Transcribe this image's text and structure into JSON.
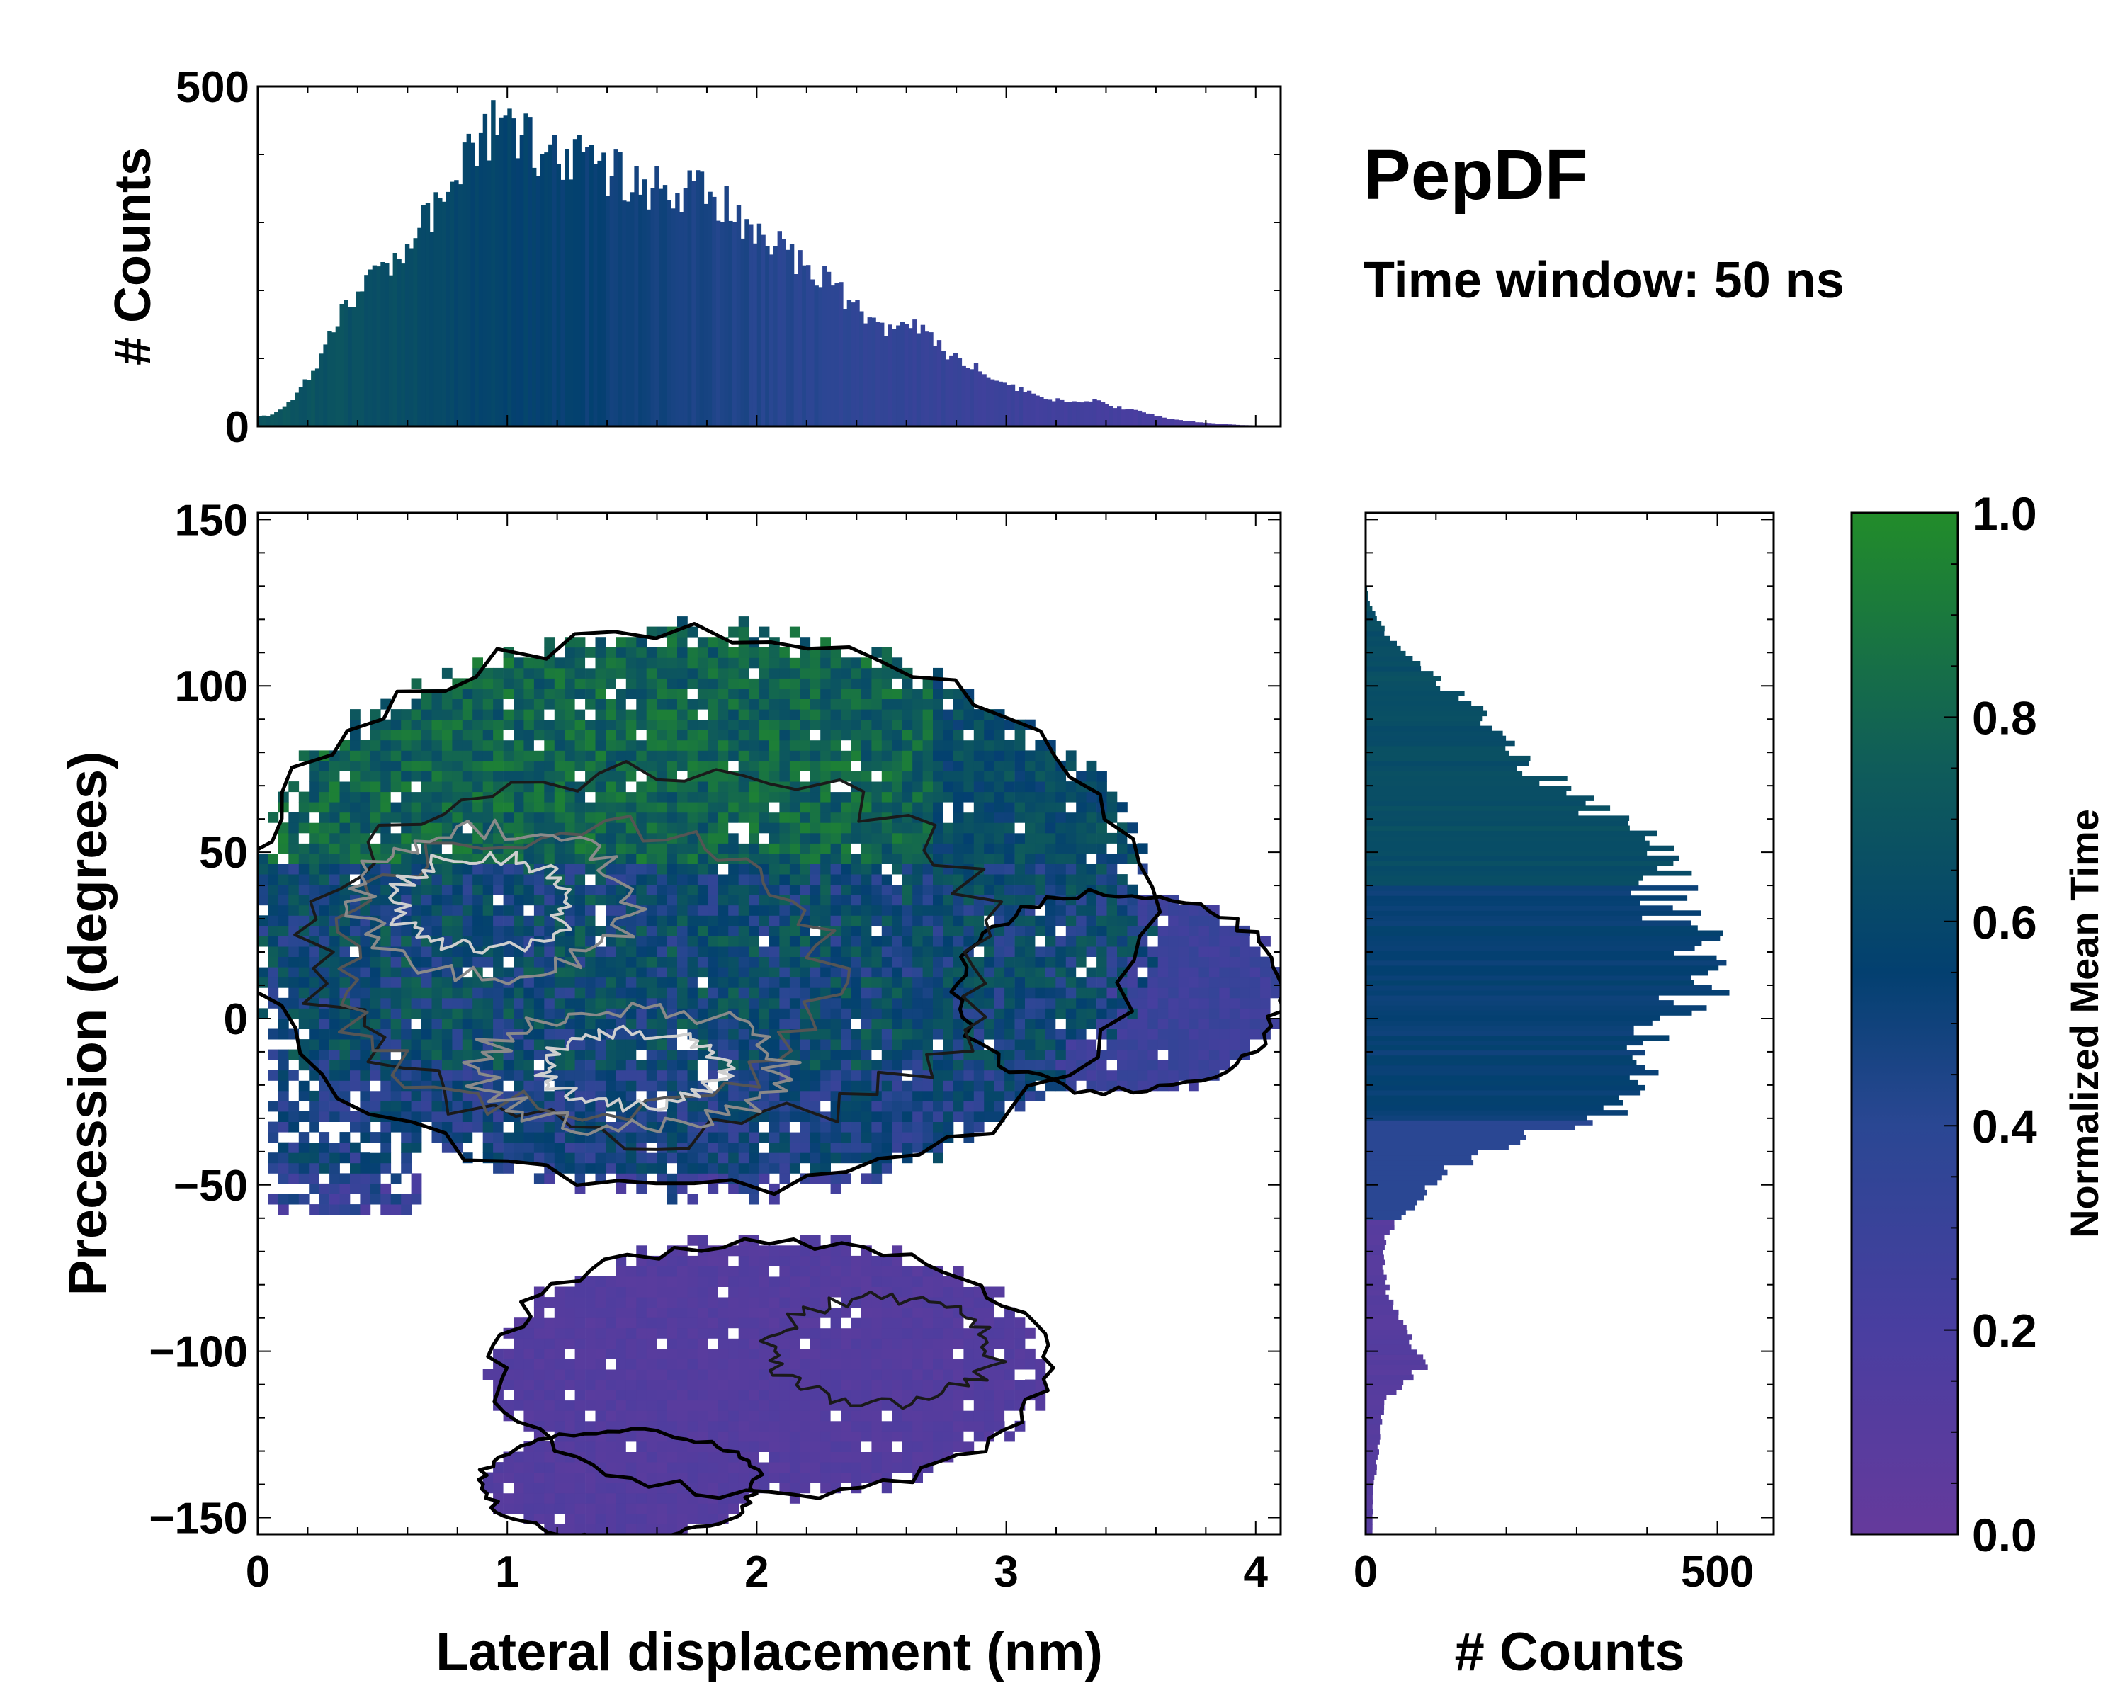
{
  "title": "PepDF",
  "subtitle": "Time window: 50 ns",
  "chart_data": [
    {
      "type": "heatmap",
      "name": "main-2d-histogram",
      "xlabel": "Lateral displacement (nm)",
      "ylabel": "Precession (degrees)",
      "xlim": [
        0,
        4.1
      ],
      "ylim": [
        -155,
        152
      ],
      "xticks": [
        "0",
        "1",
        "2",
        "3",
        "4"
      ],
      "xtick_values": [
        0,
        1,
        2,
        3,
        4
      ],
      "yticks": [
        "−150",
        "−100",
        "−50",
        "0",
        "50",
        "100",
        "150"
      ],
      "ytick_values": [
        -150,
        -100,
        -50,
        0,
        50,
        100,
        150
      ],
      "overlay": "density contours (white = highest density, grey, black = outer)",
      "density_modes": [
        {
          "x": 0.9,
          "y": 35,
          "label": "high"
        },
        {
          "x": 1.5,
          "y": -15,
          "label": "high"
        },
        {
          "x": 2.5,
          "y": -100,
          "label": "medium"
        }
      ],
      "regions": [
        {
          "name": "upper-main",
          "x_range": [
            0,
            3.6
          ],
          "y_range": [
            -65,
            120
          ],
          "normalized_mean_time": "0.3-0.9"
        },
        {
          "name": "right-lobe",
          "x_range": [
            2.9,
            4.05
          ],
          "y_range": [
            -30,
            40
          ],
          "normalized_mean_time": "0.2-0.3"
        },
        {
          "name": "lower-lobe",
          "x_range": [
            0.8,
            3.3
          ],
          "y_range": [
            -155,
            -65
          ],
          "normalized_mean_time": "0.05-0.15"
        }
      ]
    },
    {
      "type": "bar",
      "name": "top-marginal-histogram",
      "xlabel": "Lateral displacement (nm)",
      "ylabel": "# Counts",
      "xlim": [
        0,
        4.1
      ],
      "ylim": [
        0,
        500
      ],
      "yticks": [
        "0",
        "500"
      ],
      "x": [
        0.05,
        0.15,
        0.25,
        0.35,
        0.45,
        0.55,
        0.65,
        0.75,
        0.85,
        0.95,
        1.05,
        1.15,
        1.25,
        1.35,
        1.45,
        1.55,
        1.65,
        1.75,
        1.85,
        1.95,
        2.05,
        2.15,
        2.25,
        2.35,
        2.45,
        2.55,
        2.65,
        2.75,
        2.85,
        2.95,
        3.05,
        3.15,
        3.25,
        3.35,
        3.45,
        3.55,
        3.65,
        3.75,
        3.85,
        3.95,
        4.05
      ],
      "values": [
        15,
        45,
        100,
        175,
        220,
        250,
        290,
        340,
        400,
        440,
        425,
        400,
        395,
        385,
        370,
        355,
        350,
        345,
        335,
        300,
        280,
        245,
        225,
        190,
        150,
        145,
        150,
        110,
        95,
        75,
        55,
        45,
        35,
        38,
        28,
        20,
        12,
        7,
        4,
        2,
        1
      ]
    },
    {
      "type": "bar",
      "name": "right-marginal-histogram",
      "orientation": "horizontal",
      "xlabel": "# Counts",
      "ylabel": "Precession (degrees)",
      "xlim": [
        0,
        580
      ],
      "xticks": [
        "0",
        "500"
      ],
      "ylim": [
        -155,
        152
      ],
      "y": [
        125,
        115,
        105,
        95,
        85,
        75,
        65,
        55,
        45,
        35,
        25,
        15,
        5,
        -5,
        -15,
        -25,
        -35,
        -45,
        -55,
        -65,
        -75,
        -85,
        -95,
        -105,
        -115,
        -125,
        -135,
        -145
      ],
      "values": [
        5,
        30,
        90,
        140,
        200,
        240,
        300,
        390,
        430,
        420,
        470,
        480,
        460,
        400,
        390,
        400,
        240,
        120,
        70,
        30,
        25,
        35,
        60,
        80,
        25,
        20,
        15,
        10
      ]
    },
    {
      "type": "colorbar",
      "name": "colorbar",
      "label": "Normalized Mean Time",
      "range": [
        0.0,
        1.0
      ],
      "ticks": [
        "0.0",
        "0.2",
        "0.4",
        "0.6",
        "0.8",
        "1.0"
      ],
      "colors": [
        "#653a9c",
        "#493ea0",
        "#2a4793",
        "#034070",
        "#0f5c5a",
        "#228c2a"
      ]
    }
  ]
}
